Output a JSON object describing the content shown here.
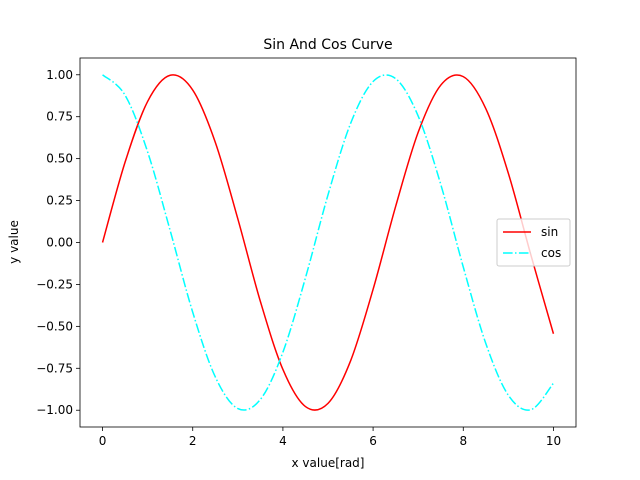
{
  "chart_data": {
    "type": "line",
    "title": "Sin And Cos Curve",
    "xlabel": "x value[rad]",
    "ylabel": "y value",
    "xlim": [
      -0.5,
      10.5
    ],
    "ylim": [
      -1.1,
      1.1
    ],
    "x_ticks": [
      0,
      2,
      4,
      6,
      8,
      10
    ],
    "x_tick_labels": [
      "0",
      "2",
      "4",
      "6",
      "8",
      "10"
    ],
    "y_ticks": [
      -1.0,
      -0.75,
      -0.5,
      -0.25,
      0.0,
      0.25,
      0.5,
      0.75,
      1.0
    ],
    "y_tick_labels": [
      "−1.00",
      "−0.75",
      "−0.50",
      "−0.25",
      "0.00",
      "0.25",
      "0.50",
      "0.75",
      "1.00"
    ],
    "grid": false,
    "legend_position": "center-right",
    "x": [
      0,
      0.5,
      1,
      1.5,
      2,
      2.5,
      3,
      3.5,
      4,
      4.5,
      5,
      5.5,
      6,
      6.5,
      7,
      7.5,
      8,
      8.5,
      9,
      9.5,
      10
    ],
    "series": [
      {
        "name": "sin",
        "color": "#ff0000",
        "line_style": "solid",
        "values": [
          0.0,
          0.479,
          0.841,
          0.997,
          0.909,
          0.598,
          0.141,
          -0.351,
          -0.757,
          -0.978,
          -0.959,
          -0.706,
          -0.279,
          0.215,
          0.657,
          0.938,
          0.989,
          0.798,
          0.412,
          -0.075,
          -0.544
        ]
      },
      {
        "name": "cos",
        "color": "#00ffff",
        "line_style": "dashdot",
        "values": [
          1.0,
          0.878,
          0.54,
          0.071,
          -0.416,
          -0.801,
          -0.99,
          -0.936,
          -0.654,
          -0.211,
          0.284,
          0.709,
          0.96,
          0.977,
          0.754,
          0.347,
          -0.146,
          -0.602,
          -0.911,
          -0.997,
          -0.839
        ]
      }
    ]
  }
}
